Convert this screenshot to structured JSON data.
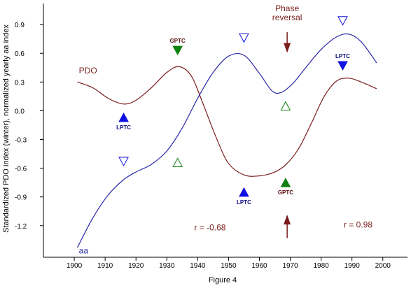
{
  "caption": "Figure 4",
  "chart_data": {
    "type": "line",
    "ylabel": "Standardized PDO index (winter), normalized yearly aa index",
    "xlabel": "",
    "xlim": [
      1890,
      2008
    ],
    "ylim": [
      -1.53,
      1.12
    ],
    "x_ticks": [
      1900,
      1910,
      1920,
      1930,
      1940,
      1950,
      1960,
      1970,
      1980,
      1990,
      2000
    ],
    "y_ticks": [
      -1.2,
      -0.9,
      -0.6,
      -0.3,
      0.0,
      0.3,
      0.6,
      0.9
    ],
    "y_tick_labels": [
      "-1.2",
      "-0.9",
      "-0.6",
      "-0.3",
      "0.0",
      "0.3",
      "0.6",
      "0.9"
    ],
    "grid": false,
    "series": [
      {
        "name": "PDO",
        "color": "#7b1c1c",
        "label_at": [
          1901.5,
          0.42
        ],
        "x": [
          1901,
          1906,
          1911,
          1916,
          1920,
          1925,
          1930,
          1934,
          1938,
          1942,
          1946,
          1950,
          1955,
          1960,
          1965,
          1969,
          1973,
          1977,
          1981,
          1985,
          1989,
          1993,
          1998
        ],
        "y": [
          0.3,
          0.24,
          0.13,
          0.07,
          0.11,
          0.24,
          0.4,
          0.46,
          0.36,
          0.05,
          -0.28,
          -0.55,
          -0.67,
          -0.68,
          -0.64,
          -0.55,
          -0.38,
          -0.12,
          0.15,
          0.31,
          0.34,
          0.3,
          0.23
        ]
      },
      {
        "name": "aa",
        "color": "#2a2aa8",
        "label_at": [
          1901.5,
          -1.46
        ],
        "x": [
          1901,
          1906,
          1911,
          1916,
          1920,
          1925,
          1930,
          1935,
          1940,
          1945,
          1950,
          1955,
          1960,
          1964,
          1967,
          1971,
          1975,
          1980,
          1985,
          1989,
          1993,
          1998
        ],
        "y": [
          -1.43,
          -1.12,
          -0.88,
          -0.72,
          -0.64,
          -0.56,
          -0.42,
          -0.18,
          0.13,
          0.4,
          0.57,
          0.58,
          0.39,
          0.21,
          0.19,
          0.29,
          0.45,
          0.64,
          0.77,
          0.8,
          0.72,
          0.5
        ]
      }
    ],
    "markers": [
      {
        "x": 1916,
        "y": -0.07,
        "shape": "triangle-up",
        "fill": "#1010e0",
        "filled": true,
        "label": "LPTC",
        "label_pos": "below"
      },
      {
        "x": 1916,
        "y": -0.53,
        "shape": "triangle-down",
        "fill": "#1010e0",
        "filled": false,
        "label": ""
      },
      {
        "x": 1933.5,
        "y": 0.63,
        "shape": "triangle-down",
        "fill": "#108010",
        "filled": true,
        "label": "GPTC",
        "label_pos": "above"
      },
      {
        "x": 1933.5,
        "y": -0.54,
        "shape": "triangle-up",
        "fill": "#108010",
        "filled": false,
        "label": ""
      },
      {
        "x": 1955,
        "y": 0.76,
        "shape": "triangle-down",
        "fill": "#1010e0",
        "filled": false,
        "label": ""
      },
      {
        "x": 1955,
        "y": -0.85,
        "shape": "triangle-up",
        "fill": "#1010e0",
        "filled": true,
        "label": "LPTC",
        "label_pos": "below"
      },
      {
        "x": 1968.5,
        "y": 0.05,
        "shape": "triangle-up",
        "fill": "#108010",
        "filled": false,
        "label": ""
      },
      {
        "x": 1968.5,
        "y": -0.75,
        "shape": "triangle-up",
        "fill": "#108010",
        "filled": true,
        "label": "GPTC",
        "label_pos": "below"
      },
      {
        "x": 1987,
        "y": 0.94,
        "shape": "triangle-down",
        "fill": "#1010e0",
        "filled": false,
        "label": ""
      },
      {
        "x": 1987,
        "y": 0.47,
        "shape": "triangle-down",
        "fill": "#1010e0",
        "filled": true,
        "label": "LPTC",
        "label_pos": "above"
      }
    ],
    "annotations": [
      {
        "text": "Phase reversal",
        "lines": [
          "Phase",
          "reversal"
        ],
        "x": 1969,
        "y": 1.04,
        "color": "#7b1c1c"
      },
      {
        "text": "r = -0.68",
        "x": 1944,
        "y": -1.22,
        "color": "#7b1c1c"
      },
      {
        "text": "r = 0.98",
        "x": 1992,
        "y": -1.19,
        "color": "#7b1c1c"
      }
    ],
    "arrows": [
      {
        "x": 1969,
        "from_y": 0.82,
        "to_y": 0.62,
        "direction": "down",
        "color": "#7b1c1c"
      },
      {
        "x": 1969,
        "from_y": -1.33,
        "to_y": -1.1,
        "direction": "up",
        "color": "#7b1c1c"
      }
    ]
  }
}
